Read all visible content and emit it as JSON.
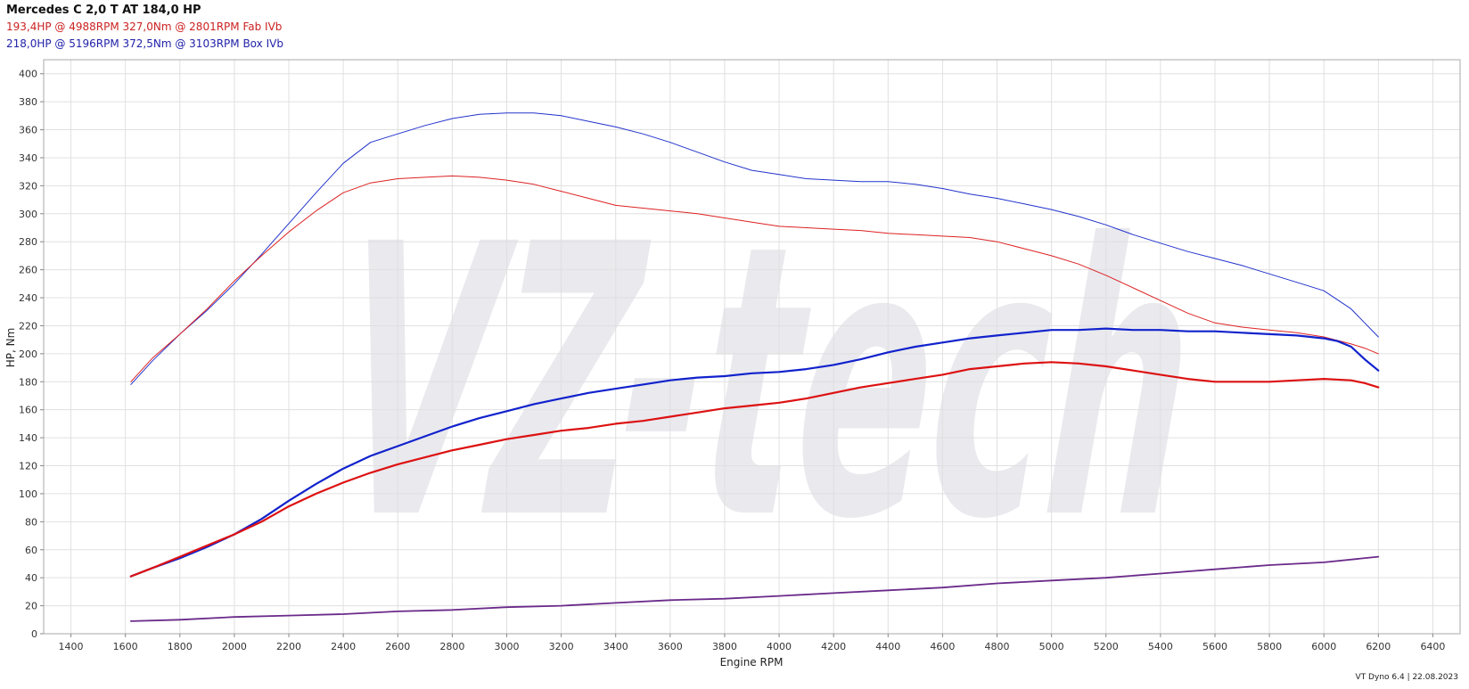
{
  "header": {
    "title": "Mercedes C 2,0 T AT 184,0 HP",
    "runs": [
      {
        "text": "193,4HP @ 4988RPM 327,0Nm @ 2801RPM  Fab IVb",
        "color": "#cc2222"
      },
      {
        "text": "218,0HP @ 5196RPM 372,5Nm @ 3103RPM  Box IVb",
        "color": "#2222aa"
      }
    ]
  },
  "watermark": "VZ-tech",
  "footer": "VT Dyno 6.4 | 22.08.2023",
  "chart_data": {
    "type": "line",
    "xlabel": "Engine RPM",
    "ylabel": "HP, Nm",
    "xlim": [
      1300,
      6500
    ],
    "ylim": [
      0,
      410
    ],
    "xticks": [
      1400,
      1600,
      1800,
      2000,
      2200,
      2400,
      2600,
      2800,
      3000,
      3200,
      3400,
      3600,
      3800,
      4000,
      4200,
      4400,
      4600,
      4800,
      5000,
      5200,
      5400,
      5600,
      5800,
      6000,
      6200,
      6400
    ],
    "yticks": [
      0,
      20,
      40,
      60,
      80,
      100,
      120,
      140,
      160,
      180,
      200,
      220,
      240,
      260,
      280,
      300,
      320,
      340,
      360,
      380,
      400
    ],
    "grid": true,
    "series": [
      {
        "color": "#2233cc",
        "width": 1,
        "x": [
          1620,
          1700,
          1800,
          1900,
          2000,
          2100,
          2200,
          2300,
          2400,
          2500,
          2600,
          2700,
          2800,
          2900,
          3000,
          3100,
          3200,
          3300,
          3400,
          3500,
          3600,
          3700,
          3800,
          3900,
          4000,
          4100,
          4200,
          4300,
          4400,
          4500,
          4600,
          4700,
          4800,
          4900,
          5000,
          5100,
          5200,
          5300,
          5400,
          5500,
          5600,
          5700,
          5800,
          5900,
          6000,
          6100,
          6150,
          6200
        ],
        "y": [
          178,
          195,
          214,
          231,
          250,
          271,
          293,
          315,
          336,
          351,
          357,
          363,
          368,
          371,
          372,
          372,
          370,
          366,
          362,
          357,
          351,
          344,
          337,
          331,
          328,
          325,
          324,
          323,
          323,
          321,
          318,
          314,
          311,
          307,
          303,
          298,
          292,
          285,
          279,
          273,
          268,
          263,
          257,
          251,
          245,
          232,
          222,
          212
        ]
      },
      {
        "color": "#dd2222",
        "width": 1,
        "x": [
          1620,
          1700,
          1800,
          1900,
          2000,
          2100,
          2200,
          2300,
          2400,
          2500,
          2600,
          2700,
          2800,
          2900,
          3000,
          3100,
          3200,
          3300,
          3400,
          3500,
          3600,
          3700,
          3800,
          3900,
          4000,
          4100,
          4200,
          4300,
          4400,
          4500,
          4600,
          4700,
          4800,
          4900,
          5000,
          5100,
          5200,
          5300,
          5400,
          5500,
          5600,
          5700,
          5800,
          5900,
          6000,
          6100,
          6150,
          6200
        ],
        "y": [
          180,
          197,
          214,
          232,
          252,
          270,
          287,
          302,
          315,
          322,
          325,
          326,
          327,
          326,
          324,
          321,
          316,
          311,
          306,
          304,
          302,
          300,
          297,
          294,
          291,
          290,
          289,
          288,
          286,
          285,
          284,
          283,
          280,
          275,
          270,
          264,
          256,
          247,
          238,
          229,
          222,
          219,
          217,
          215,
          212,
          207,
          204,
          200
        ]
      },
      {
        "color": "#1122cc",
        "width": 2.2,
        "x": [
          1620,
          1700,
          1800,
          1900,
          2000,
          2100,
          2200,
          2300,
          2400,
          2500,
          2600,
          2700,
          2800,
          2900,
          3000,
          3100,
          3200,
          3300,
          3400,
          3500,
          3600,
          3700,
          3800,
          3900,
          4000,
          4100,
          4200,
          4300,
          4400,
          4500,
          4600,
          4700,
          4800,
          4900,
          5000,
          5100,
          5200,
          5300,
          5400,
          5500,
          5600,
          5700,
          5800,
          5900,
          6000,
          6050,
          6100,
          6150,
          6200
        ],
        "y": [
          41,
          47,
          54,
          62,
          71,
          82,
          95,
          107,
          118,
          127,
          134,
          141,
          148,
          154,
          159,
          164,
          168,
          172,
          175,
          178,
          181,
          183,
          184,
          186,
          187,
          189,
          192,
          196,
          201,
          205,
          208,
          211,
          213,
          215,
          217,
          217,
          218,
          217,
          217,
          216,
          216,
          215,
          214,
          213,
          211,
          209,
          205,
          196,
          188
        ]
      },
      {
        "color": "#dd1111",
        "width": 2.2,
        "x": [
          1620,
          1700,
          1800,
          1900,
          2000,
          2100,
          2200,
          2300,
          2400,
          2500,
          2600,
          2700,
          2800,
          2900,
          3000,
          3100,
          3200,
          3300,
          3400,
          3500,
          3600,
          3700,
          3800,
          3900,
          4000,
          4100,
          4200,
          4300,
          4400,
          4500,
          4600,
          4700,
          4800,
          4900,
          5000,
          5100,
          5200,
          5300,
          5400,
          5500,
          5600,
          5700,
          5800,
          5900,
          6000,
          6100,
          6150,
          6200
        ],
        "y": [
          41,
          47,
          55,
          63,
          71,
          80,
          91,
          100,
          108,
          115,
          121,
          126,
          131,
          135,
          139,
          142,
          145,
          147,
          150,
          152,
          155,
          158,
          161,
          163,
          165,
          168,
          172,
          176,
          179,
          182,
          185,
          189,
          191,
          193,
          194,
          193,
          191,
          188,
          185,
          182,
          180,
          180,
          180,
          181,
          182,
          181,
          179,
          176
        ]
      },
      {
        "color": "#6a2a8a",
        "width": 1.8,
        "x": [
          1620,
          1800,
          2000,
          2200,
          2400,
          2600,
          2800,
          3000,
          3200,
          3400,
          3600,
          3800,
          4000,
          4200,
          4400,
          4600,
          4800,
          5000,
          5200,
          5400,
          5600,
          5800,
          6000,
          6200
        ],
        "y": [
          9,
          10,
          12,
          13,
          14,
          16,
          17,
          19,
          20,
          22,
          24,
          25,
          27,
          29,
          31,
          33,
          36,
          38,
          40,
          43,
          46,
          49,
          51,
          55
        ]
      }
    ]
  }
}
